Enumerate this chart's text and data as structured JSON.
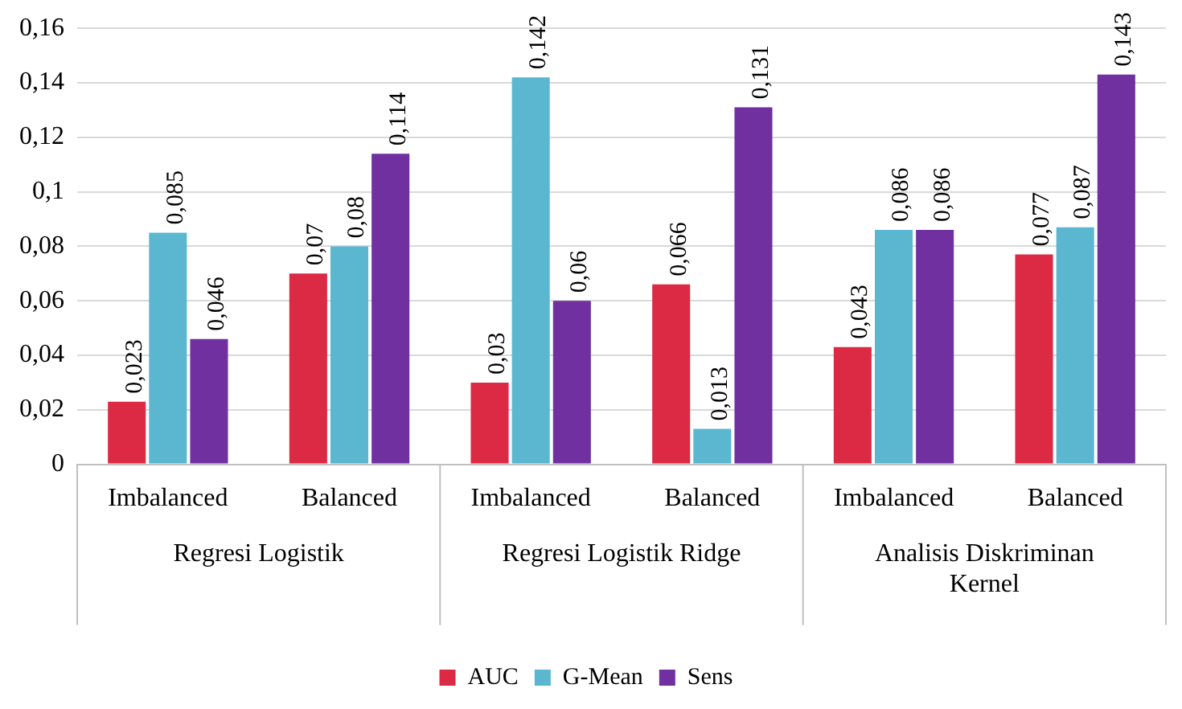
{
  "chart_data": {
    "type": "bar",
    "categories": [
      "Imbalanced",
      "Balanced",
      "Imbalanced",
      "Balanced",
      "Imbalanced",
      "Balanced"
    ],
    "series": [
      {
        "name": "AUC",
        "color": "#dc2a44",
        "values": [
          0.023,
          0.07,
          0.03,
          0.066,
          0.043,
          0.077
        ],
        "value_labels": [
          "0,023",
          "0,07",
          "0,03",
          "0,066",
          "0,043",
          "0,077"
        ]
      },
      {
        "name": "G-Mean",
        "color": "#5bb6cf",
        "values": [
          0.085,
          0.08,
          0.142,
          0.013,
          0.086,
          0.087
        ],
        "value_labels": [
          "0,085",
          "0,08",
          "0,142",
          "0,013",
          "0,086",
          "0,087"
        ]
      },
      {
        "name": "Sens",
        "color": "#7030a0",
        "values": [
          0.046,
          0.114,
          0.06,
          0.131,
          0.086,
          0.143
        ],
        "value_labels": [
          "0,046",
          "0,114",
          "0,06",
          "0,131",
          "0,086",
          "0,143"
        ]
      }
    ],
    "annotations": [
      "Regresi Logistik",
      "Regresi Logistik Ridge",
      "Analisis Diskriminan Kernel"
    ],
    "ylim": [
      0,
      0.16
    ],
    "yticks": [
      {
        "value": 0,
        "label": "0"
      },
      {
        "value": 0.02,
        "label": "0,02"
      },
      {
        "value": 0.04,
        "label": "0,04"
      },
      {
        "value": 0.06,
        "label": "0,06"
      },
      {
        "value": 0.08,
        "label": "0,08"
      },
      {
        "value": 0.1,
        "label": "0,1"
      },
      {
        "value": 0.12,
        "label": "0,12"
      },
      {
        "value": 0.14,
        "label": "0,14"
      },
      {
        "value": 0.16,
        "label": "0,16"
      }
    ],
    "grid": "y",
    "legend": "bottom"
  }
}
